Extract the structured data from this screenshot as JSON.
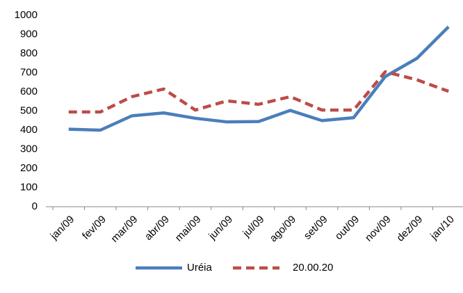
{
  "chart_data": {
    "type": "line",
    "categories": [
      "jan/09",
      "fev/09",
      "mar/09",
      "abr/09",
      "mai/09",
      "jun/09",
      "jul/09",
      "ago/09",
      "set/09",
      "out/09",
      "nov/09",
      "dez/09",
      "jan/10"
    ],
    "series": [
      {
        "name": "Uréia",
        "color": "#4a7ebb",
        "dash": false,
        "values": [
          405,
          400,
          475,
          490,
          462,
          443,
          445,
          503,
          450,
          465,
          680,
          775,
          940
        ]
      },
      {
        "name": "20.00.20",
        "color": "#be4b48",
        "dash": true,
        "values": [
          495,
          495,
          575,
          615,
          505,
          553,
          535,
          575,
          505,
          505,
          705,
          663,
          603
        ]
      }
    ],
    "ylim": [
      0,
      1000
    ],
    "yticks": [
      0,
      100,
      200,
      300,
      400,
      500,
      600,
      700,
      800,
      900,
      1000
    ],
    "grid": false,
    "legend": "bottom"
  }
}
